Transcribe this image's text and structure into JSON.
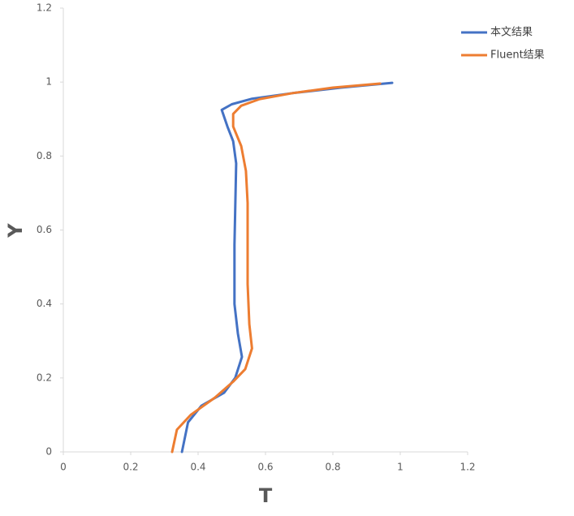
{
  "chart_data": {
    "type": "line",
    "x_label": "T",
    "y_label": "Y",
    "xlim": [
      0,
      1.2
    ],
    "ylim": [
      0,
      1.2
    ],
    "xticks": [
      0,
      0.2,
      0.4,
      0.6,
      0.8,
      1,
      1.2
    ],
    "yticks": [
      0,
      0.2,
      0.4,
      0.6,
      0.8,
      1,
      1.2
    ],
    "grid": false,
    "legend": "top-right",
    "series": [
      {
        "name": "本文结果",
        "color": "#4472c4",
        "x": [
          0.352,
          0.37,
          0.41,
          0.477,
          0.51,
          0.53,
          0.518,
          0.508,
          0.508,
          0.513,
          0.504,
          0.487,
          0.47,
          0.5,
          0.56,
          0.68,
          0.824,
          0.976
        ],
        "values": [
          0,
          0.08,
          0.125,
          0.16,
          0.2,
          0.257,
          0.32,
          0.4,
          0.56,
          0.78,
          0.84,
          0.88,
          0.925,
          0.94,
          0.955,
          0.97,
          0.985,
          0.998
        ]
      },
      {
        "name": "Fluent结果",
        "color": "#ed7d31",
        "x": [
          0.323,
          0.337,
          0.378,
          0.45,
          0.504,
          0.54,
          0.56,
          0.552,
          0.547,
          0.547,
          0.542,
          0.528,
          0.504,
          0.504,
          0.528,
          0.583,
          0.68,
          0.8,
          0.94
        ],
        "values": [
          0,
          0.06,
          0.1,
          0.147,
          0.19,
          0.224,
          0.28,
          0.345,
          0.454,
          0.673,
          0.76,
          0.827,
          0.88,
          0.914,
          0.936,
          0.954,
          0.97,
          0.985,
          0.996
        ]
      }
    ]
  }
}
